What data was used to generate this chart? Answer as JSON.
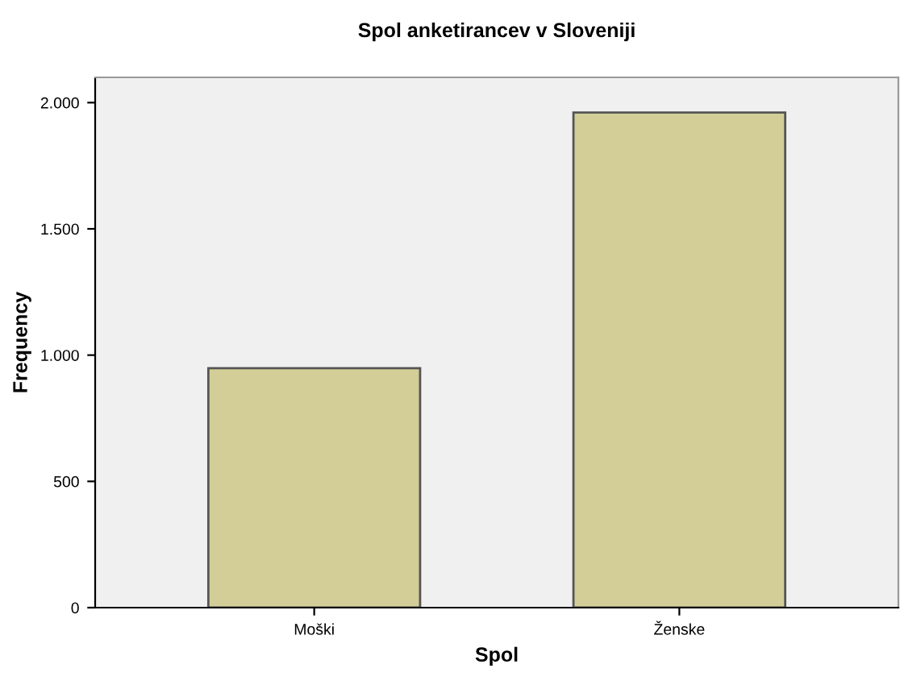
{
  "chart_data": {
    "type": "bar",
    "title": "Spol anketirancev v Sloveniji",
    "xlabel": "Spol",
    "ylabel": "Frequency",
    "categories": [
      "Moški",
      "Ženske"
    ],
    "values": [
      948,
      1961
    ],
    "color": "#d3ce97",
    "ylim": [
      0,
      2100
    ],
    "yticks": [
      0,
      {
        "value": 500,
        "label": "500"
      },
      {
        "value": 1000,
        "label": "1.000"
      },
      {
        "value": 1500,
        "label": "1.500"
      },
      {
        "value": 2000,
        "label": "2.000"
      }
    ],
    "grid": false
  }
}
